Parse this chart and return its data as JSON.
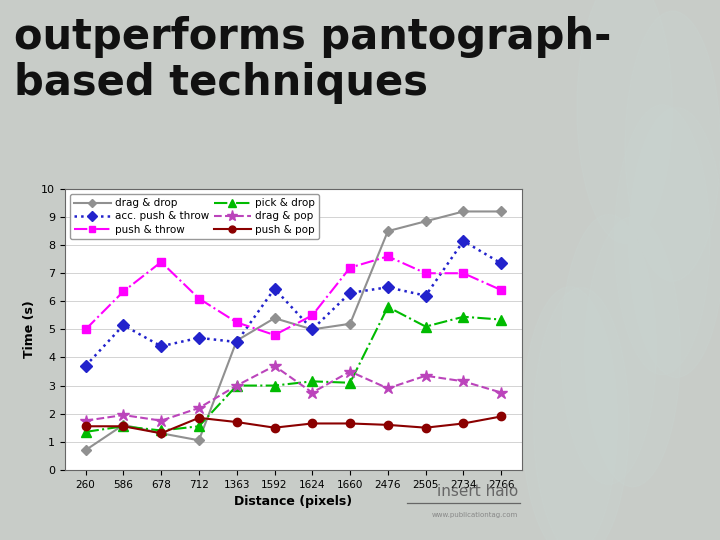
{
  "title": "outperforms pantograph-\nbased techniques",
  "xlabel": "Distance (pixels)",
  "ylabel": "Time (s)",
  "x_labels": [
    "260",
    "586",
    "678",
    "712",
    "1363",
    "1592",
    "1624",
    "1660",
    "2476",
    "2505",
    "2734",
    "2766"
  ],
  "ylim": [
    0,
    10
  ],
  "series": {
    "drag & drop": {
      "y": [
        0.7,
        1.6,
        1.3,
        1.05,
        4.6,
        5.4,
        5.0,
        5.2,
        8.5,
        8.85,
        9.2,
        9.2
      ],
      "color": "#909090",
      "linestyle": "-",
      "marker": "D",
      "markersize": 5,
      "linewidth": 1.5
    },
    "push & throw": {
      "y": [
        5.0,
        6.35,
        7.4,
        6.1,
        5.25,
        4.8,
        5.5,
        7.2,
        7.6,
        7.0,
        7.0,
        6.4
      ],
      "color": "#ff00ff",
      "linestyle": "-.",
      "marker": "s",
      "markersize": 6,
      "linewidth": 1.5
    },
    "drag & pop": {
      "y": [
        1.75,
        1.95,
        1.75,
        2.2,
        3.0,
        3.7,
        2.75,
        3.5,
        2.9,
        3.35,
        3.15,
        2.75
      ],
      "color": "#bb44bb",
      "linestyle": "--",
      "marker": "*",
      "markersize": 9,
      "linewidth": 1.5
    },
    "acc. push & throw": {
      "y": [
        3.7,
        5.15,
        4.4,
        4.7,
        4.55,
        6.45,
        5.0,
        6.3,
        6.5,
        6.2,
        8.15,
        7.35
      ],
      "color": "#2222cc",
      "linestyle": ":",
      "marker": "D",
      "markersize": 6,
      "linewidth": 1.8
    },
    "pick & drop": {
      "y": [
        1.35,
        1.55,
        1.4,
        1.55,
        3.0,
        3.0,
        3.15,
        3.1,
        5.8,
        5.1,
        5.45,
        5.35
      ],
      "color": "#00bb00",
      "linestyle": "-.",
      "marker": "^",
      "markersize": 7,
      "linewidth": 1.5
    },
    "push & pop": {
      "y": [
        1.55,
        1.55,
        1.3,
        1.85,
        1.7,
        1.5,
        1.65,
        1.65,
        1.6,
        1.5,
        1.65,
        1.9
      ],
      "color": "#8b0000",
      "linestyle": "-",
      "marker": "o",
      "markersize": 6,
      "linewidth": 1.5
    }
  },
  "legend_order": [
    "drag & drop",
    "acc. push & throw",
    "push & throw",
    "pick & drop",
    "drag & pop",
    "push & pop"
  ],
  "bg_color": "#c8ccc8",
  "plot_bg": "#ffffff",
  "right_bg": "#a8b8b0",
  "insert_halo_text": "insert halo"
}
